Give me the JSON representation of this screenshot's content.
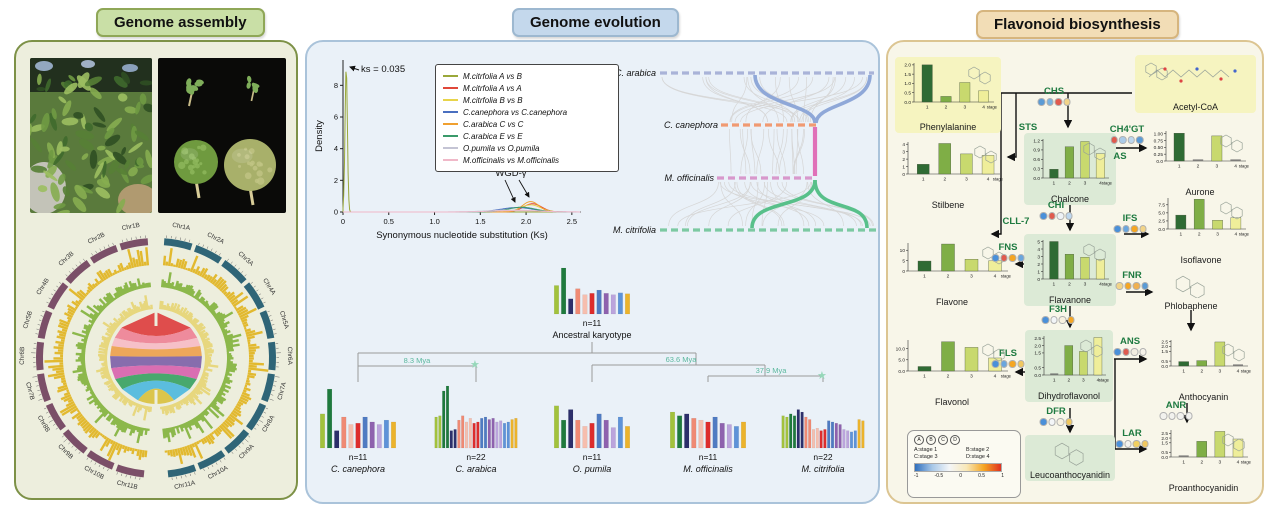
{
  "panels": {
    "assembly": {
      "title": "Genome assembly",
      "photos": {
        "plant": "noni plant",
        "fruits": "noni fruits"
      },
      "circos": {
        "chromosomes_a": [
          "Chr1A",
          "Chr2A",
          "Chr3A",
          "Chr4A",
          "Chr5A",
          "Chr6A",
          "Chr7A",
          "Chr8A",
          "Chr9A",
          "Chr10A",
          "Chr11A"
        ],
        "chromosomes_b": [
          "Chr1B",
          "Chr2B",
          "Chr3B",
          "Chr4B",
          "Chr5B",
          "Chr6B",
          "Chr7B",
          "Chr8B",
          "Chr9B",
          "Chr10B",
          "Chr11B"
        ],
        "colors": {
          "ideogram_a": "#2f6577",
          "ideogram_b": "#7b4f68",
          "track_outer": "#e2b92f",
          "track_mid": "#8cb84b",
          "track_inner": "#e7d77e"
        },
        "ribbon_colors": [
          "#dd3f3f",
          "#ee8296",
          "#f6bcc6",
          "#eda14e",
          "#7e62a8",
          "#d863ae",
          "#3aa263",
          "#4eb9dd",
          "#d9c13e"
        ]
      }
    },
    "evolution": {
      "title": "Genome evolution",
      "ks_plot": {
        "type": "line",
        "peak_annotation": "ks = 0.035",
        "wgd_annotation": "WGD-γ",
        "xlabel": "Synonymous nucleotide substitution (Ks)",
        "ylabel": "Density",
        "x_ticks": [
          "0",
          "0.5",
          "1.0",
          "1.5",
          "2.0",
          "2.5"
        ],
        "y_ticks": [
          "0",
          "2",
          "4",
          "6",
          "8"
        ],
        "xlim": [
          0,
          2.6
        ],
        "ylim": [
          0,
          9.6
        ],
        "series": [
          {
            "name": "M.citrfolia A vs B",
            "color": "#9aa83a",
            "peaks": [
              {
                "mu": 0.035,
                "sigma": 0.013,
                "h": 9.1
              }
            ]
          },
          {
            "name": "M.citrfolia A vs A",
            "color": "#e0483a",
            "peaks": [
              {
                "mu": 2.07,
                "sigma": 0.1,
                "h": 0.52
              }
            ]
          },
          {
            "name": "M.citrfolia B vs B",
            "color": "#e8d44a",
            "peaks": [
              {
                "mu": 2.05,
                "sigma": 0.11,
                "h": 0.45
              }
            ]
          },
          {
            "name": "C.canephora vs C.canephora",
            "color": "#4a6fc0",
            "peaks": [
              {
                "mu": 1.9,
                "sigma": 0.18,
                "h": 0.28
              }
            ]
          },
          {
            "name": "C.arabica C vs C",
            "color": "#f0a030",
            "peaks": [
              {
                "mu": 2.05,
                "sigma": 0.09,
                "h": 0.66
              }
            ]
          },
          {
            "name": "C.arabica E vs E",
            "color": "#3a9a6a",
            "peaks": [
              {
                "mu": 1.95,
                "sigma": 0.15,
                "h": 0.3
              }
            ]
          },
          {
            "name": "O.pumila vs O.pumila",
            "color": "#c4c4d4",
            "peaks": [
              {
                "mu": 1.85,
                "sigma": 0.26,
                "h": 0.12
              }
            ]
          },
          {
            "name": "M.officinalis vs M.officinalis",
            "color": "#f0b8c8",
            "peaks": [
              {
                "mu": 1.9,
                "sigma": 0.26,
                "h": 0.09
              }
            ]
          }
        ]
      },
      "synteny": {
        "species": [
          {
            "name": "C. arabica",
            "color": "#a9b3d8"
          },
          {
            "name": "C. canephora",
            "color": "#f09a72"
          },
          {
            "name": "M. officinalis",
            "color": "#d898cc"
          },
          {
            "name": "M. citrifolia",
            "color": "#7cc9a2"
          }
        ],
        "highlight_colors": {
          "top": "#8fa8d8",
          "mid": "#e070b8",
          "bottom": "#58c08a"
        }
      },
      "karyotype": {
        "bar_colors": [
          "#a2c23c",
          "#1f7a3d",
          "#2c2f6b",
          "#ef8a74",
          "#f6beae",
          "#dd2c2c",
          "#4f7bc2",
          "#8e62ae",
          "#bba4dc",
          "#5e93d8",
          "#ecb32c"
        ],
        "ancestral": {
          "count": "n=11",
          "name": "Ancestral karyotype",
          "heights": [
            0.62,
            1.0,
            0.33,
            0.55,
            0.42,
            0.45,
            0.52,
            0.45,
            0.42,
            0.46,
            0.44
          ]
        },
        "species": [
          {
            "id": "canephora",
            "count": "n=11",
            "name": "C. canephora",
            "heights": [
              0.55,
              0.95,
              0.28,
              0.5,
              0.38,
              0.4,
              0.5,
              0.42,
              0.38,
              0.45,
              0.42
            ]
          },
          {
            "id": "arabica",
            "count": "n=22",
            "name": "C. arabica",
            "heights": [
              0.5,
              0.52,
              0.92,
              1.0,
              0.28,
              0.3,
              0.45,
              0.52,
              0.42,
              0.48,
              0.4,
              0.42,
              0.48,
              0.5,
              0.46,
              0.48,
              0.42,
              0.44,
              0.4,
              0.42,
              0.46,
              0.48
            ]
          },
          {
            "id": "opumila",
            "count": "n=11",
            "name": "O. pumila",
            "heights": [
              0.68,
              0.45,
              0.62,
              0.45,
              0.35,
              0.4,
              0.55,
              0.45,
              0.33,
              0.5,
              0.35
            ]
          },
          {
            "id": "officinalis",
            "count": "n=11",
            "name": "M. officinalis",
            "heights": [
              0.58,
              0.52,
              0.55,
              0.48,
              0.45,
              0.42,
              0.5,
              0.4,
              0.38,
              0.35,
              0.42
            ]
          },
          {
            "id": "citrifolia",
            "count": "n=22",
            "name": "M. citrifolia",
            "heights": [
              0.52,
              0.5,
              0.55,
              0.52,
              0.62,
              0.58,
              0.5,
              0.46,
              0.3,
              0.32,
              0.28,
              0.3,
              0.44,
              0.42,
              0.4,
              0.38,
              0.3,
              0.28,
              0.26,
              0.28,
              0.46,
              0.44
            ]
          }
        ],
        "divergence_labels": [
          "8.3 Mya",
          "63.6 Mya",
          "37.9 Mya"
        ],
        "divergence_color": "#5bb89e",
        "star_color": "#96d8ba"
      }
    },
    "flavonoid": {
      "title": "Flavonoid biosynthesis",
      "stage_colors": [
        "#2f6b34",
        "#7fae46",
        "#c8d96e",
        "#efee9a"
      ],
      "stage_axis": {
        "ticks": [
          "1",
          "2",
          "3",
          "4"
        ],
        "label": "stage"
      },
      "nodes": [
        {
          "id": "phenylalanine",
          "label": "Phenylalanine",
          "yticks": [
            "2.0",
            "1.5",
            "1.0",
            "0.5",
            "0.0"
          ],
          "ymax": 2.1,
          "values": [
            2.0,
            0.3,
            1.05,
            0.6
          ]
        },
        {
          "id": "acetylcoa",
          "label": "Acetyl-CoA",
          "values": null
        },
        {
          "id": "stilbene",
          "label": "Stilbene",
          "yticks": [
            "4",
            "3",
            "2",
            "1",
            "0"
          ],
          "ymax": 4.3,
          "values": [
            1.3,
            4.1,
            2.7,
            2.5
          ]
        },
        {
          "id": "chalcone",
          "label": "Chalcone",
          "yticks": [
            "1.2",
            "0.9",
            "0.6",
            "0.3",
            "0.0"
          ],
          "ymax": 1.25,
          "values": [
            0.28,
            1.0,
            1.17,
            0.78
          ]
        },
        {
          "id": "aurone",
          "label": "Aurone",
          "yticks": [
            "1.00",
            "0.75",
            "0.50",
            "0.25",
            "0.0"
          ],
          "ymax": 1.1,
          "values": [
            1.02,
            0.01,
            0.92,
            0.02
          ]
        },
        {
          "id": "flavone",
          "label": "Flavone",
          "yticks": [
            "10",
            "5",
            "0"
          ],
          "ymax": 13.5,
          "values": [
            4.8,
            13,
            5.7,
            4.9
          ]
        },
        {
          "id": "flavanone",
          "label": "Flavanone",
          "yticks": [
            "5",
            "4",
            "3",
            "2",
            "1",
            "0"
          ],
          "ymax": 5.2,
          "values": [
            5.0,
            3.3,
            2.9,
            2.6
          ]
        },
        {
          "id": "isoflavone",
          "label": "Isoflavone",
          "yticks": [
            "7.5",
            "5.0",
            "2.5",
            "0.0"
          ],
          "ymax": 9.6,
          "values": [
            4.3,
            9.2,
            2.7,
            3.5
          ]
        },
        {
          "id": "phlobaphene",
          "label": "Phlobaphene",
          "values": null
        },
        {
          "id": "flavonol",
          "label": "Flavonol",
          "yticks": [
            "10.0",
            "5.0",
            "0.0"
          ],
          "ymax": 13.8,
          "values": [
            2.0,
            13.0,
            10.5,
            5.8
          ]
        },
        {
          "id": "dihydroflavonol",
          "label": "Dihydroflavonol",
          "yticks": [
            "2.5",
            "2.0",
            "1.5",
            "0.5",
            "0.0"
          ],
          "ymax": 2.65,
          "values": [
            0.05,
            2.0,
            1.6,
            2.55
          ]
        },
        {
          "id": "anthocyanin",
          "label": "Anthocyanin",
          "yticks": [
            "2.5",
            "2.0",
            "1.5",
            "0.5",
            "0.0"
          ],
          "ymax": 2.65,
          "values": [
            0.45,
            0.55,
            2.45,
            0.02
          ]
        },
        {
          "id": "leucoanthocyanidin",
          "label": "Leucoanthocyanidin",
          "values": null
        },
        {
          "id": "proanthocyanidin",
          "label": "Proanthocyanidin",
          "yticks": [
            "2.5",
            "2.0",
            "1.5",
            "0.5",
            "0.0"
          ],
          "ymax": 2.85,
          "values": [
            0.05,
            1.65,
            2.7,
            1.9
          ]
        }
      ],
      "enzymes": [
        {
          "id": "CHS",
          "label": "CHS",
          "dots": [
            "#5b9bd5",
            "#7ab3e0",
            "#e05a4e",
            "#f2d488"
          ]
        },
        {
          "id": "STS",
          "label": "STS",
          "dots": null
        },
        {
          "id": "CH4GT",
          "label": "CH4'GT",
          "dots": [
            "#e05a4e",
            "#aacbe8",
            "#bdd7ee",
            "#5b9bd5"
          ]
        },
        {
          "id": "AS",
          "label": "AS",
          "dots": null
        },
        {
          "id": "CLL7",
          "label": "CLL-7",
          "dots": null
        },
        {
          "id": "CHI",
          "label": "CHI",
          "dots": [
            "#4a90d9",
            "#e05a4e",
            "#eef2f6",
            "#bdd7ee"
          ]
        },
        {
          "id": "FNS",
          "label": "FNS",
          "dots": [
            "#4a90d9",
            "#e05a4e",
            "#f5a623",
            "#6aa6dd"
          ]
        },
        {
          "id": "IFS",
          "label": "IFS",
          "dots": [
            "#4a90d9",
            "#6aa6dd",
            "#f5a623",
            "#f2d488"
          ]
        },
        {
          "id": "FNR",
          "label": "FNR",
          "dots": [
            "#f2d488",
            "#f5a623",
            "#f0b050",
            "#5b9bd5"
          ]
        },
        {
          "id": "F3H",
          "label": "F3H",
          "dots": [
            "#4a90d9",
            "#f2f5f8",
            "#f8f1e0",
            "#f5a623"
          ]
        },
        {
          "id": "FLS",
          "label": "FLS",
          "dots": [
            "#4a90d9",
            "#6aa6dd",
            "#f5a623",
            "#f0c860"
          ]
        },
        {
          "id": "DFR",
          "label": "DFR",
          "dots": [
            "#4a90d9",
            "#f4f6f8",
            "#f8f2e2",
            "#f0c860"
          ]
        },
        {
          "id": "ANS",
          "label": "ANS",
          "dots": [
            "#4a90d9",
            "#e05a4e",
            "#f2ede0",
            "#f6f3ea"
          ]
        },
        {
          "id": "ANR",
          "label": "ANR",
          "dots": [
            "#f2f2ee",
            "#f2f2ee",
            "#f2f2ee",
            "#f2f2ee"
          ]
        },
        {
          "id": "LAR",
          "label": "LAR",
          "dots": [
            "#4a90d9",
            "#f2f2ee",
            "#f2d060",
            "#f0c860"
          ]
        }
      ],
      "legend": {
        "groups": [
          "A",
          "B",
          "C",
          "D"
        ],
        "stages": [
          "A:stage 1",
          "B:stage 2",
          "C:stage 3",
          "D:stage 4"
        ],
        "scale_ticks": [
          "-1",
          "-0.5",
          "0",
          "0.5",
          "1"
        ],
        "gradient": [
          "#2f6fbd",
          "#a8c8e8",
          "#f4f6f8",
          "#f8e8b8",
          "#f5a623",
          "#e03020"
        ]
      }
    }
  }
}
